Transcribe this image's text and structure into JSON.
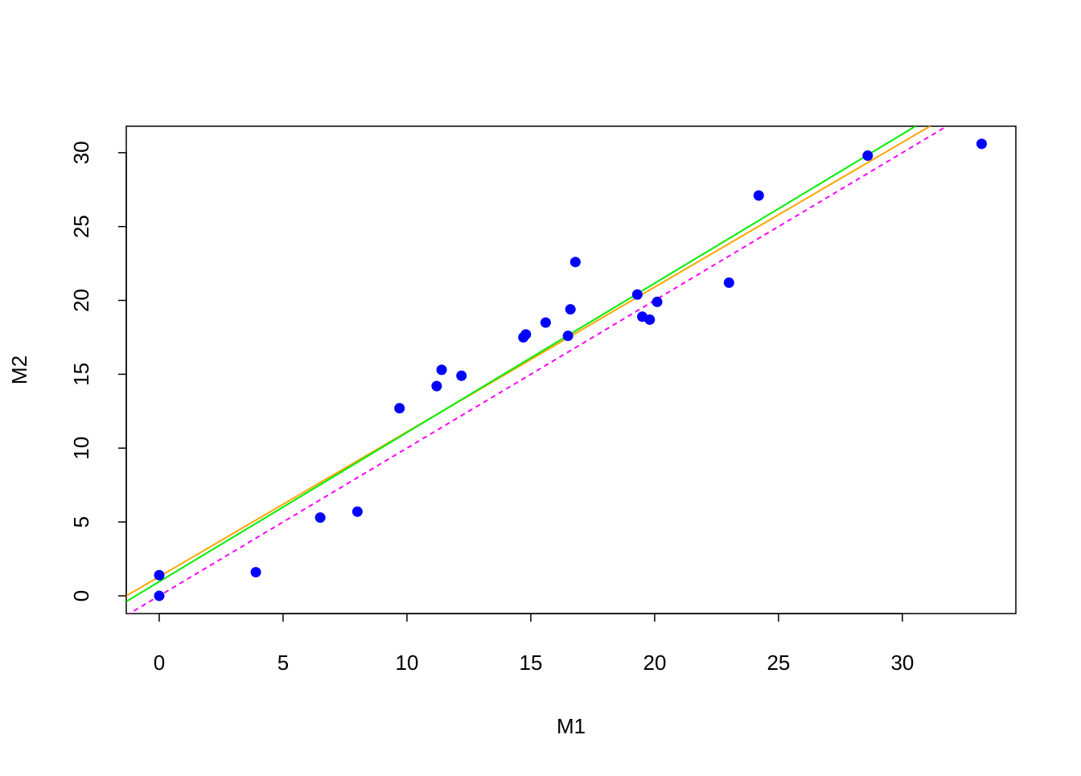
{
  "chart_data": {
    "type": "scatter",
    "xlabel": "M1",
    "ylabel": "M2",
    "series": [
      {
        "color": "#0000ff",
        "x": [
          0,
          0,
          3.9,
          6.5,
          8.0,
          9.7,
          11.2,
          11.4,
          12.2,
          14.7,
          14.8,
          15.6,
          16.5,
          16.6,
          16.8,
          19.3,
          19.5,
          19.8,
          20.1,
          23.0,
          24.2,
          28.6,
          33.2
        ],
        "values": [
          1.4,
          0,
          1.6,
          5.3,
          5.7,
          12.7,
          14.2,
          15.3,
          14.9,
          17.5,
          17.7,
          18.5,
          17.6,
          19.4,
          22.6,
          20.4,
          18.9,
          18.7,
          19.9,
          21.2,
          27.1,
          29.8,
          30.6
        ]
      }
    ],
    "lines": [
      {
        "color": "#ff00ff",
        "intercept": 0,
        "slope": 1,
        "dashed": true
      },
      {
        "color": "#ffa500",
        "intercept": 1.3,
        "slope": 0.98,
        "dashed": false
      },
      {
        "color": "#00ee00",
        "intercept": 0.96,
        "slope": 1.01,
        "dashed": false
      }
    ],
    "xlim": [
      -1.33,
      34.58
    ],
    "ylim": [
      -1.2,
      31.79
    ],
    "xticks": [
      0,
      5,
      10,
      15,
      20,
      25,
      30
    ],
    "yticks": [
      0,
      5,
      10,
      15,
      20,
      25,
      30
    ]
  }
}
